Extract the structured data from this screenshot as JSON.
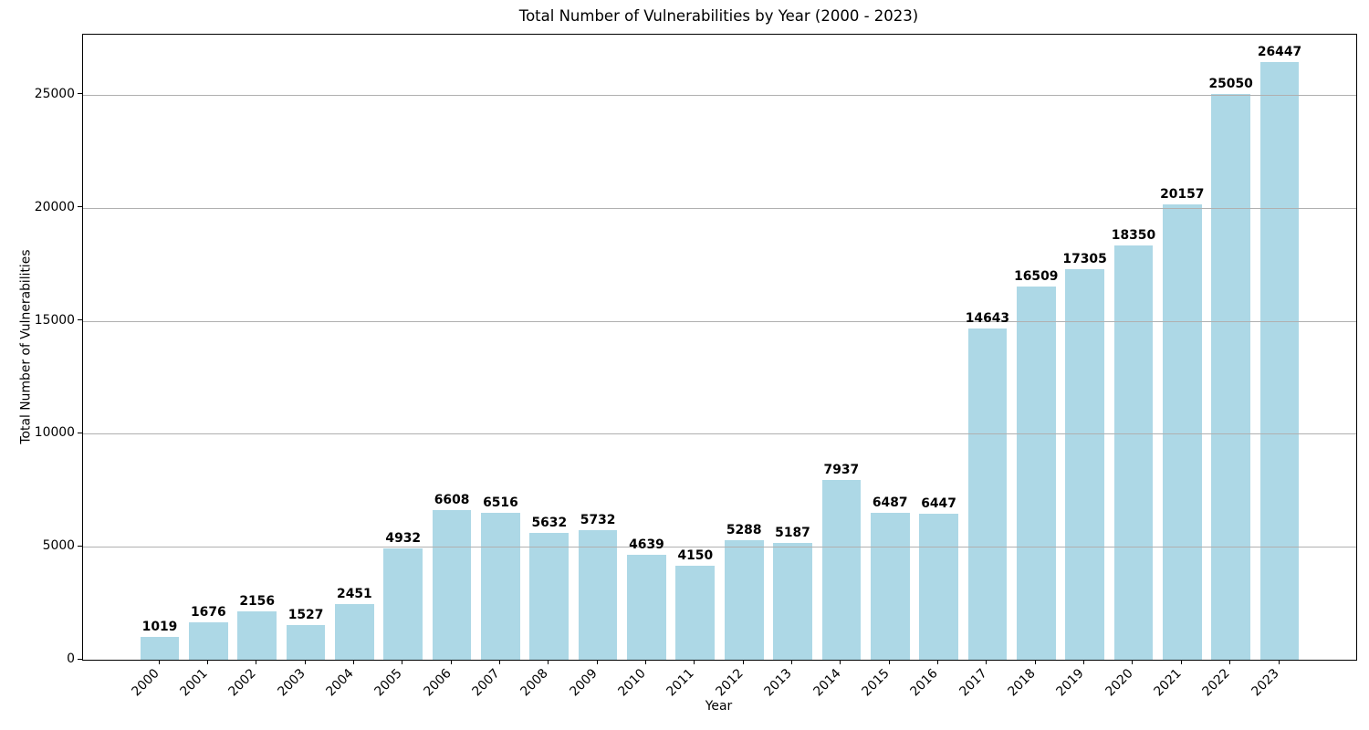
{
  "chart_data": {
    "type": "bar",
    "title": "Total Number of Vulnerabilities by Year (2000 - 2023)",
    "xlabel": "Year",
    "ylabel": "Total Number of Vulnerabilities",
    "categories": [
      "2000",
      "2001",
      "2002",
      "2003",
      "2004",
      "2005",
      "2006",
      "2007",
      "2008",
      "2009",
      "2010",
      "2011",
      "2012",
      "2013",
      "2014",
      "2015",
      "2016",
      "2017",
      "2018",
      "2019",
      "2020",
      "2021",
      "2022",
      "2023"
    ],
    "values": [
      1019,
      1676,
      2156,
      1527,
      2451,
      4932,
      6608,
      6516,
      5632,
      5732,
      4639,
      4150,
      5288,
      5187,
      7937,
      6487,
      6447,
      14643,
      16509,
      17305,
      18350,
      20157,
      25050,
      26447
    ],
    "value_labels_shown": true,
    "yticks": [
      0,
      5000,
      10000,
      15000,
      20000,
      25000
    ],
    "ylim": [
      0,
      27665
    ],
    "xtick_rotation_deg": 45,
    "bar_color": "#ADD8E6",
    "grid": "horizontal",
    "grid_color": "#b0b0b0",
    "grid_above_bars": true,
    "text_color": "#000000",
    "background_color": "#ffffff",
    "legend": "none"
  }
}
